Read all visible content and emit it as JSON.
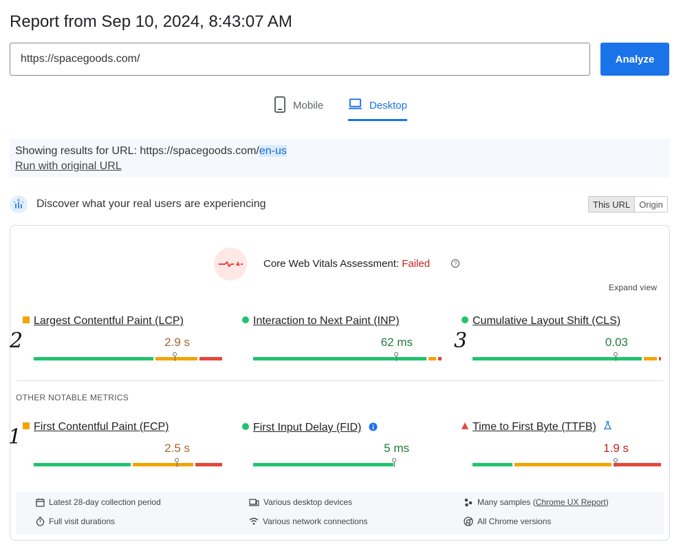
{
  "title": "Report from Sep 10, 2024, 8:43:07 AM",
  "search": {
    "value": "https://spacegoods.com/",
    "analyze_label": "Analyze"
  },
  "tabs": [
    {
      "label": "Mobile",
      "icon": "phone-icon",
      "active": false
    },
    {
      "label": "Desktop",
      "icon": "laptop-icon",
      "active": true
    }
  ],
  "info": {
    "prefix": "Showing results for URL: https://spacegoods.com/",
    "highlight": "en-us",
    "run_original": "Run with original URL"
  },
  "discover": {
    "text": "Discover what your real users are experiencing",
    "toggle": [
      "This URL",
      "Origin"
    ]
  },
  "cwv": {
    "label": "Core Web Vitals Assessment: ",
    "status": "Failed",
    "status_color": "#c5221f",
    "expand": "Expand view"
  },
  "core_metrics": [
    {
      "name": "Largest Contentful Paint (LCP)",
      "value": "2.9 s",
      "rating": "needs-improvement",
      "marker": "square",
      "distribution": {
        "good": 0.64,
        "needs_improvement": 0.23,
        "poor": 0.13
      },
      "percentile_position": 0.74
    },
    {
      "name": "Interaction to Next Paint (INP)",
      "value": "62 ms",
      "rating": "good",
      "marker": "circle",
      "distribution": {
        "good": 0.92,
        "needs_improvement": 0.05,
        "poor": 0.03
      },
      "percentile_position": 0.75
    },
    {
      "name": "Cumulative Layout Shift (CLS)",
      "value": "0.03",
      "rating": "good",
      "marker": "circle",
      "distribution": {
        "good": 0.9,
        "needs_improvement": 0.08,
        "poor": 0.02
      },
      "percentile_position": 0.75
    }
  ],
  "other_heading": "OTHER NOTABLE METRICS",
  "other_metrics": [
    {
      "name": "First Contentful Paint (FCP)",
      "value": "2.5 s",
      "rating": "needs-improvement",
      "marker": "square",
      "distribution": {
        "good": 0.52,
        "needs_improvement": 0.33,
        "poor": 0.15
      },
      "percentile_position": 0.75
    },
    {
      "name": "First Input Delay (FID)",
      "value": "5 ms",
      "rating": "good",
      "marker": "circle",
      "info_icon": true,
      "distribution": {
        "good": 0.76,
        "needs_improvement": 0.0,
        "poor": 0.0
      },
      "percentile_position": 0.75
    },
    {
      "name": "Time to First Byte (TTFB)",
      "value": "1.9 s",
      "rating": "poor",
      "marker": "triangle",
      "lab_icon": true,
      "distribution": {
        "good": 0.22,
        "needs_improvement": 0.52,
        "poor": 0.26
      },
      "percentile_position": 0.75
    }
  ],
  "footer": {
    "items": [
      {
        "icon": "calendar-icon",
        "text": "Latest 28-day collection period"
      },
      {
        "icon": "devices-icon",
        "text": "Various desktop devices"
      },
      {
        "icon": "samples-icon",
        "text": "Many samples (",
        "link": "Chrome UX Report",
        "suffix": ")"
      },
      {
        "icon": "timer-icon",
        "text": "Full visit durations"
      },
      {
        "icon": "wifi-icon",
        "text": "Various network connections"
      },
      {
        "icon": "chrome-icon",
        "text": "All Chrome versions"
      }
    ]
  },
  "annotations": [
    "2",
    "3",
    "1"
  ],
  "colors": {
    "good": "#1fc46b",
    "needs_improvement": "#f2a400",
    "poor": "#e8453c",
    "accent": "#1a73e8"
  }
}
